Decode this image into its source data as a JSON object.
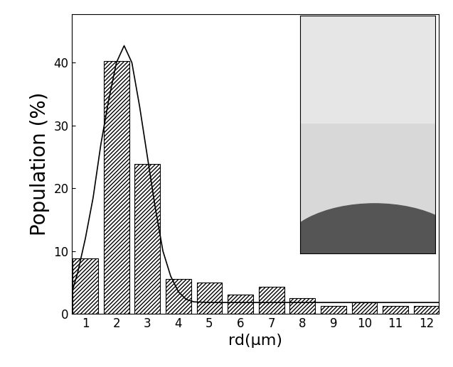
{
  "chart_data": {
    "type": "bar",
    "x_label": "rd(μm)",
    "y_label": "Population (%)",
    "xlim": [
      0.57,
      12.4
    ],
    "xticks": [
      1,
      2,
      3,
      4,
      5,
      6,
      7,
      8,
      9,
      10,
      11,
      12
    ],
    "ylim": [
      0,
      47.7
    ],
    "yticks": [
      0,
      10,
      20,
      30,
      40
    ],
    "series": [
      {
        "type": "bar",
        "color": "#ffffff",
        "x": [
          1,
          2,
          3,
          4,
          5,
          6,
          7,
          8,
          9,
          10,
          11,
          12
        ],
        "values": [
          8.8,
          40.3,
          23.9,
          5.6,
          5.0,
          3.1,
          4.3,
          2.5,
          1.2,
          1.8,
          1.2,
          1.2
        ]
      },
      {
        "type": "line",
        "color": "#000000",
        "line_style": "solid",
        "x": [
          0.57,
          0.75,
          1.0,
          1.25,
          1.5,
          1.75,
          2.0,
          2.25,
          2.5,
          2.75,
          3.0,
          3.25,
          3.5,
          3.75,
          4.0,
          4.25,
          4.5,
          5.0,
          6.0,
          8.0,
          10.0,
          12.4
        ],
        "values": [
          3.5,
          6.5,
          12.0,
          18.5,
          27.0,
          34.0,
          40.0,
          42.7,
          40.0,
          33.0,
          25.0,
          17.0,
          10.0,
          6.0,
          3.5,
          2.3,
          1.9,
          1.8,
          1.8,
          1.8,
          1.8,
          1.8
        ]
      }
    ]
  }
}
